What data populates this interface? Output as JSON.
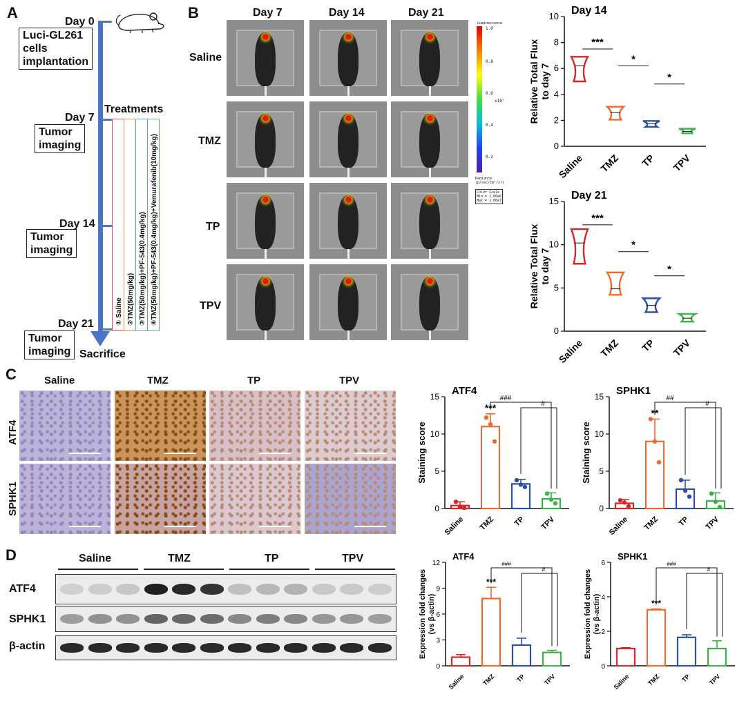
{
  "panel_a": {
    "letter": "A",
    "day0": "Day 0",
    "implant": [
      "Luci-GL261",
      "cells",
      "implantation"
    ],
    "day7": "Day 7",
    "day14": "Day 14",
    "day21": "Day 21",
    "tumor": [
      "Tumor",
      "imaging"
    ],
    "treatments_title": "Treatments",
    "treatments": [
      "① Saline",
      "②TMZ(50mg/kg)",
      "③TMZ(50mg/kg)+PF-543(0.4mg/kg)",
      "④TMZ(50mg/kg)+PF-543(0.4mg/kg)+Vemurafenib(10mg/kg)"
    ],
    "sacrifice": "Sacrifice"
  },
  "panel_b": {
    "letter": "B",
    "columns": [
      "Day 7",
      "Day 14",
      "Day 21"
    ],
    "rows": [
      "Saline",
      "TMZ",
      "TP",
      "TPV"
    ],
    "scale": {
      "title": "Luminescence",
      "ticks": [
        "1.0",
        "0.8",
        "0.6",
        "0.4",
        "0.2"
      ],
      "exponent": "x10⁷",
      "radiance": [
        "Radiance",
        "(p/sec/cm²/sr)"
      ],
      "color_scale": [
        "Color Scale",
        "Min = 1.00e6",
        "Max = 1.00e7"
      ]
    }
  },
  "panel_c": {
    "letter": "C",
    "groups": [
      "Saline",
      "TMZ",
      "TP",
      "TPV"
    ],
    "rows": [
      "ATF4",
      "SPHK1"
    ]
  },
  "panel_d": {
    "letter": "D",
    "groups": [
      "Saline",
      "TMZ",
      "TP",
      "TPV"
    ],
    "rows": [
      "ATF4",
      "SPHK1",
      "β-actin"
    ]
  },
  "colors": {
    "saline": "#d62728",
    "tmz": "#ee6b2c",
    "tp": "#2b4fa3",
    "tpv": "#3cb34a"
  },
  "chart_data": [
    {
      "id": "b_day14",
      "type": "violin",
      "title": "Day 14",
      "ylabel": "Relative Total Flux\nto day 7",
      "categories": [
        "Saline",
        "TMZ",
        "TP",
        "TPV"
      ],
      "ylim": [
        0,
        10
      ],
      "yticks": [
        0,
        2,
        4,
        6,
        8,
        10
      ],
      "series": [
        {
          "median": 6.2,
          "min": 5.0,
          "max": 6.9
        },
        {
          "median": 2.6,
          "min": 2.05,
          "max": 3.05
        },
        {
          "median": 1.75,
          "min": 1.5,
          "max": 1.95
        },
        {
          "median": 1.15,
          "min": 1.0,
          "max": 1.35
        }
      ],
      "annotations": [
        {
          "from": 0,
          "to": 1,
          "label": "***",
          "y": 7.5
        },
        {
          "from": 1,
          "to": 2,
          "label": "*",
          "y": 6.2
        },
        {
          "from": 2,
          "to": 3,
          "label": "*",
          "y": 4.8
        }
      ]
    },
    {
      "id": "b_day21",
      "type": "violin",
      "title": "Day 21",
      "ylabel": "Relative Total Flux\nto day 7",
      "categories": [
        "Saline",
        "TMZ",
        "TP",
        "TPV"
      ],
      "ylim": [
        0,
        15
      ],
      "yticks": [
        0,
        5,
        10,
        15
      ],
      "series": [
        {
          "median": 10.2,
          "min": 7.8,
          "max": 11.8
        },
        {
          "median": 4.9,
          "min": 4.2,
          "max": 6.8
        },
        {
          "median": 3.0,
          "min": 2.2,
          "max": 3.8
        },
        {
          "median": 1.5,
          "min": 1.1,
          "max": 2.0
        }
      ],
      "annotations": [
        {
          "from": 0,
          "to": 1,
          "label": "***",
          "y": 12.3
        },
        {
          "from": 1,
          "to": 2,
          "label": "*",
          "y": 9.2
        },
        {
          "from": 2,
          "to": 3,
          "label": "*",
          "y": 6.4
        }
      ]
    },
    {
      "id": "c_atf4",
      "type": "bar",
      "title": "ATF4",
      "ylabel": "Staining score",
      "categories": [
        "Saline",
        "TMZ",
        "TP",
        "TPV"
      ],
      "ylim": [
        0,
        15
      ],
      "yticks": [
        0,
        5,
        10,
        15
      ],
      "values": [
        0.4,
        11.0,
        3.3,
        1.3
      ],
      "errors": [
        0.5,
        1.7,
        0.6,
        0.8
      ],
      "points": [
        [
          0.9,
          0.2,
          0.1
        ],
        [
          12.2,
          11.3,
          9.0
        ],
        [
          3.8,
          3.2,
          2.9
        ],
        [
          2.0,
          1.2,
          0.7
        ]
      ],
      "stars": [
        "",
        "***",
        "",
        ""
      ],
      "brackets": [
        {
          "from": 1,
          "to": 2,
          "label": "###"
        },
        {
          "from": 2,
          "to": 3,
          "label": "#"
        }
      ]
    },
    {
      "id": "c_sphk1",
      "type": "bar",
      "title": "SPHK1",
      "ylabel": "Staining score",
      "categories": [
        "Saline",
        "TMZ",
        "TP",
        "TPV"
      ],
      "ylim": [
        0,
        15
      ],
      "yticks": [
        0,
        5,
        10,
        15
      ],
      "values": [
        0.7,
        9.0,
        2.6,
        1.0
      ],
      "errors": [
        0.5,
        3.0,
        1.2,
        1.1
      ],
      "points": [
        [
          1.1,
          0.8,
          0.3
        ],
        [
          12.0,
          9.0,
          6.2
        ],
        [
          3.8,
          2.4,
          1.6
        ],
        [
          2.0,
          0.9,
          0.2
        ]
      ],
      "stars": [
        "",
        "**",
        "",
        ""
      ],
      "brackets": [
        {
          "from": 1,
          "to": 2,
          "label": "##"
        },
        {
          "from": 2,
          "to": 3,
          "label": "#"
        }
      ]
    },
    {
      "id": "d_atf4",
      "type": "bar",
      "title": "ATF4",
      "ylabel": "Expression fold changes\n(vs β-actin)",
      "categories": [
        "Saline",
        "TMZ",
        "TP",
        "TPV"
      ],
      "ylim": [
        0,
        12
      ],
      "yticks": [
        0,
        3,
        6,
        9,
        12
      ],
      "values": [
        1.0,
        7.8,
        2.4,
        1.55
      ],
      "errors": [
        0.3,
        1.3,
        0.8,
        0.25
      ],
      "stars": [
        "",
        "***",
        "",
        ""
      ],
      "brackets": [
        {
          "from": 1,
          "to": 2,
          "label": "###"
        },
        {
          "from": 2,
          "to": 3,
          "label": "#"
        }
      ]
    },
    {
      "id": "d_sphk1",
      "type": "bar",
      "title": "SPHK1",
      "ylabel": "Expression fold changes\n(vs β-actin)",
      "categories": [
        "Saline",
        "TMZ",
        "TP",
        "TPV"
      ],
      "ylim": [
        0,
        6
      ],
      "yticks": [
        0,
        2,
        4,
        6
      ],
      "values": [
        1.0,
        3.25,
        1.65,
        1.0
      ],
      "errors": [
        0.05,
        0.05,
        0.15,
        0.45
      ],
      "stars": [
        "",
        "***",
        "",
        ""
      ],
      "brackets": [
        {
          "from": 1,
          "to": 2,
          "label": "###"
        },
        {
          "from": 2,
          "to": 3,
          "label": "#"
        }
      ]
    }
  ]
}
